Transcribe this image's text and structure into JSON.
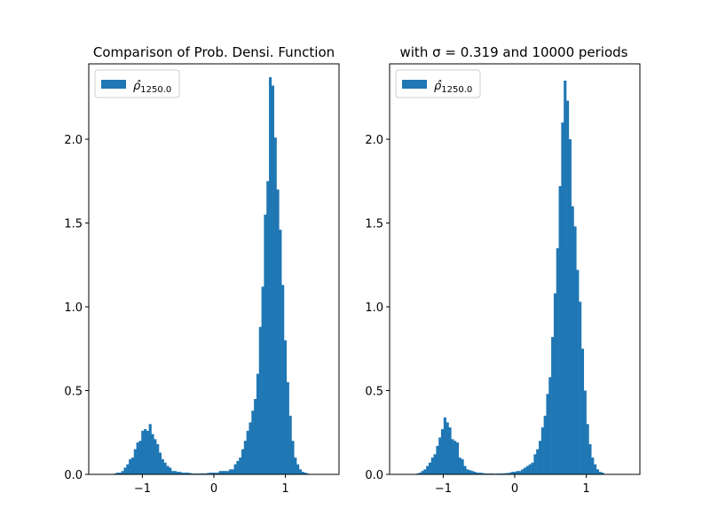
{
  "figure": {
    "background": "#ffffff",
    "bar_color": "#1f77b4"
  },
  "chart_data": [
    {
      "type": "bar",
      "title": "Comparison of Prob. Densi. Function",
      "xlabel": "",
      "ylabel": "",
      "xlim": [
        -1.75,
        1.75
      ],
      "ylim": [
        0,
        2.45
      ],
      "xticks": [
        -1,
        0,
        1
      ],
      "xtick_labels": [
        "−1",
        "0",
        "1"
      ],
      "yticks": [
        0.0,
        0.5,
        1.0,
        1.5,
        2.0
      ],
      "ytick_labels": [
        "0.0",
        "0.5",
        "1.0",
        "1.5",
        "2.0"
      ],
      "legend": {
        "position": "top-left",
        "symbol": "ρ̂",
        "subscript": "1250.0"
      },
      "grid": false,
      "series": [
        {
          "name": "ρ̂1250.0",
          "bin_start": -1.4,
          "bin_width": 0.035,
          "values": [
            0.005,
            0.01,
            0.01,
            0.02,
            0.04,
            0.06,
            0.09,
            0.1,
            0.15,
            0.19,
            0.2,
            0.26,
            0.27,
            0.26,
            0.3,
            0.24,
            0.21,
            0.18,
            0.13,
            0.09,
            0.07,
            0.05,
            0.04,
            0.02,
            0.02,
            0.015,
            0.015,
            0.01,
            0.01,
            0.01,
            0.008,
            0.005,
            0.005,
            0.005,
            0.005,
            0.006,
            0.005,
            0.008,
            0.01,
            0.01,
            0.01,
            0.01,
            0.02,
            0.02,
            0.02,
            0.02,
            0.03,
            0.03,
            0.06,
            0.08,
            0.1,
            0.15,
            0.2,
            0.26,
            0.31,
            0.38,
            0.45,
            0.6,
            0.88,
            1.12,
            1.55,
            1.75,
            2.37,
            2.32,
            2.01,
            1.7,
            1.46,
            1.13,
            0.8,
            0.55,
            0.35,
            0.2,
            0.1,
            0.06,
            0.03,
            0.015,
            0.01,
            0.005
          ]
        }
      ]
    },
    {
      "type": "bar",
      "title": "with σ = 0.319 and 10000 periods",
      "xlabel": "",
      "ylabel": "",
      "xlim": [
        -1.75,
        1.75
      ],
      "ylim": [
        0,
        2.45
      ],
      "xticks": [
        -1,
        0,
        1
      ],
      "xtick_labels": [
        "−1",
        "0",
        "1"
      ],
      "yticks": [
        0.0,
        0.5,
        1.0,
        1.5,
        2.0
      ],
      "ytick_labels": [
        "0.0",
        "0.5",
        "1.0",
        "1.5",
        "2.0"
      ],
      "legend": {
        "position": "top-left",
        "symbol": "ρ̂",
        "subscript": "1250.0"
      },
      "grid": false,
      "series": [
        {
          "name": "ρ̂1250.0",
          "bin_start": -1.38,
          "bin_width": 0.035,
          "values": [
            0.005,
            0.01,
            0.02,
            0.03,
            0.05,
            0.07,
            0.1,
            0.12,
            0.17,
            0.22,
            0.27,
            0.34,
            0.31,
            0.28,
            0.21,
            0.2,
            0.19,
            0.1,
            0.09,
            0.05,
            0.03,
            0.025,
            0.02,
            0.015,
            0.01,
            0.01,
            0.008,
            0.006,
            0.005,
            0.005,
            0.005,
            0.004,
            0.005,
            0.005,
            0.006,
            0.006,
            0.008,
            0.01,
            0.015,
            0.015,
            0.02,
            0.02,
            0.03,
            0.04,
            0.05,
            0.06,
            0.07,
            0.12,
            0.15,
            0.2,
            0.28,
            0.35,
            0.48,
            0.58,
            0.82,
            1.08,
            1.35,
            1.72,
            2.1,
            2.35,
            2.23,
            2.0,
            1.6,
            1.48,
            1.22,
            1.03,
            0.75,
            0.5,
            0.3,
            0.18,
            0.1,
            0.06,
            0.03,
            0.015,
            0.01
          ]
        }
      ]
    }
  ]
}
